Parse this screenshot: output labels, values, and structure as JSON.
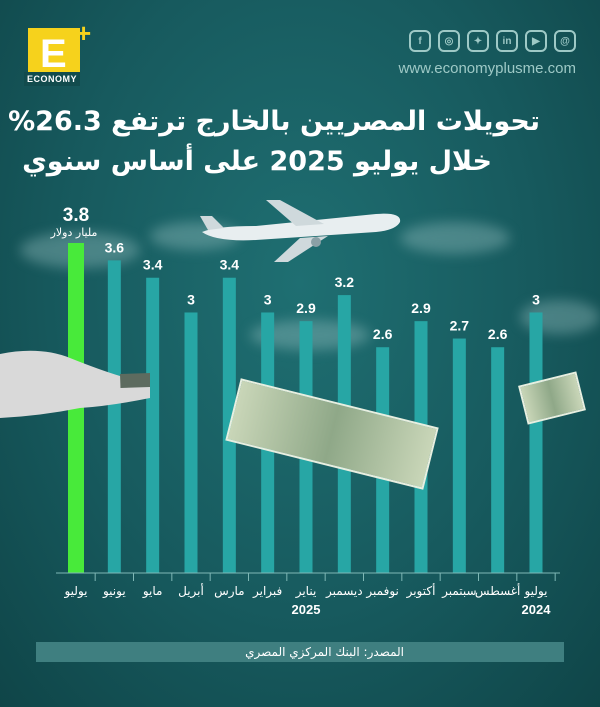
{
  "brand": {
    "logo_letter": "E",
    "logo_plus": "+",
    "logo_word": "ECONOMY",
    "website": "www.economyplusme.com",
    "social_icons": [
      "threads-icon",
      "youtube-icon",
      "linkedin-icon",
      "twitter-icon",
      "instagram-icon",
      "facebook-icon"
    ],
    "accent_color": "#f6d21c"
  },
  "headline": {
    "line1": "تحويلات المصريين بالخارج ترتفع 26.3%",
    "line2": "خلال يوليو 2025 على أساس سنوي"
  },
  "chart_data": {
    "type": "bar",
    "categories": [
      "يوليو",
      "أغسطس",
      "سبتمبر",
      "أكتوبر",
      "نوفمبر",
      "ديسمبر",
      "يناير",
      "فبراير",
      "مارس",
      "أبريل",
      "مايو",
      "يونيو",
      "يوليو"
    ],
    "values": [
      3,
      2.6,
      2.7,
      2.9,
      2.6,
      3.2,
      2.9,
      3,
      3.4,
      3,
      3.4,
      3.6,
      3.8
    ],
    "value_labels": [
      "3",
      "2.6",
      "2.7",
      "2.9",
      "2.6",
      "3.2",
      "2.9",
      "3",
      "3.4",
      "3",
      "3.4",
      "3.6",
      "3.8"
    ],
    "year_labels": [
      {
        "index": 0,
        "text": "2024"
      },
      {
        "index": 6,
        "text": "2025"
      }
    ],
    "highlight_index": 12,
    "highlight_unit": "مليار دولار",
    "bar_color": "#27a6a5",
    "highlight_color": "#48ea3a",
    "grid": false
  },
  "source": "المصدر: البنك المركزي المصري"
}
